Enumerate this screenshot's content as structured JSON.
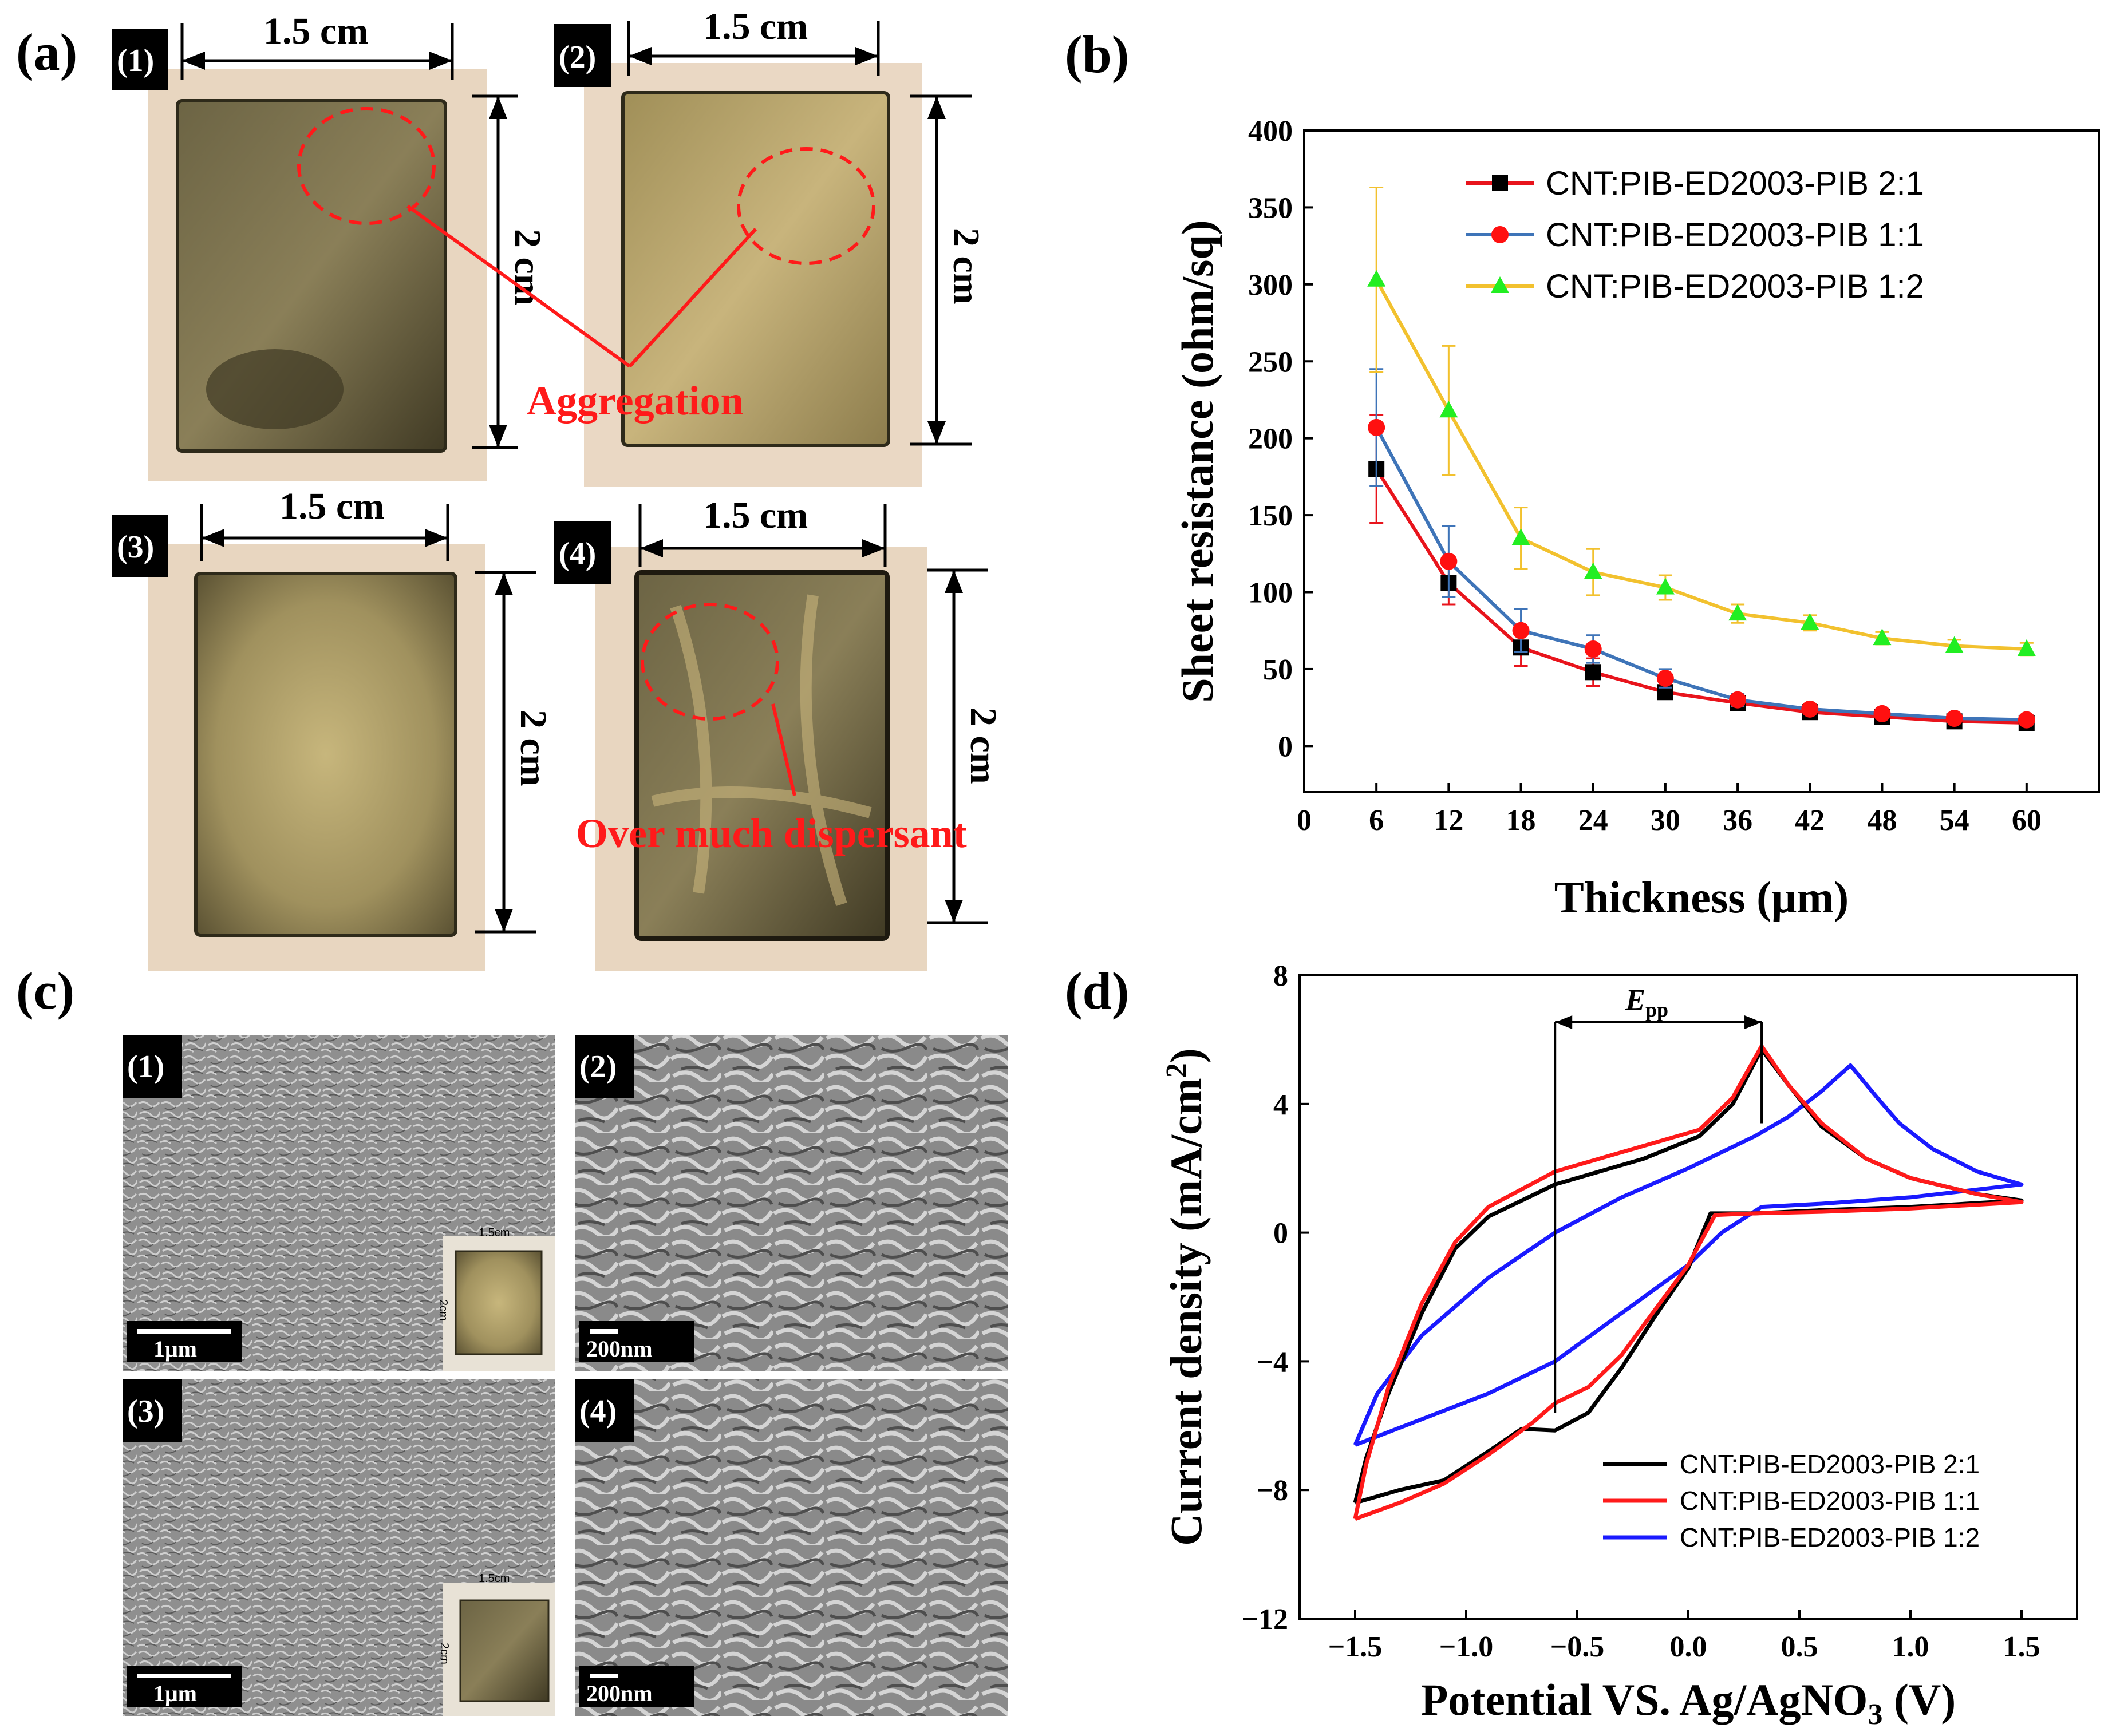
{
  "panels": {
    "a": {
      "label": "(a)",
      "photos": [
        {
          "num": "(1)",
          "width": "1.5 cm",
          "height": "2 cm"
        },
        {
          "num": "(2)",
          "width": "1.5 cm",
          "height": "2 cm"
        },
        {
          "num": "(3)",
          "width": "1.5 cm",
          "height": "2 cm"
        },
        {
          "num": "(4)",
          "width": "1.5 cm",
          "height": "2 cm"
        }
      ],
      "annotations": {
        "aggregation": "Aggregation",
        "dispersant": "Over much dispersant"
      }
    },
    "b": {
      "label": "(b)"
    },
    "c": {
      "label": "(c)",
      "images": [
        {
          "num": "(1)",
          "scale": "1μm",
          "inset_w": "1.5cm",
          "inset_h": "2cm"
        },
        {
          "num": "(2)",
          "scale": "200nm"
        },
        {
          "num": "(3)",
          "scale": "1μm",
          "inset_w": "1.5cm",
          "inset_h": "2cm"
        },
        {
          "num": "(4)",
          "scale": "200nm"
        }
      ]
    },
    "d": {
      "label": "(d)"
    }
  },
  "colors": {
    "red": "#e8141c",
    "blue": "#3e74b8",
    "yellow": "#f2c12e",
    "green": "#22ee22",
    "cv_blue": "#1a1aff",
    "annot": "#ff1a1a"
  },
  "chart_data": [
    {
      "type": "line",
      "panel": "b",
      "xlabel": "Thickness (μm)",
      "ylabel": "Sheet resistance (ohm/sq)",
      "xlim": [
        0,
        66
      ],
      "ylim": [
        -30,
        400
      ],
      "xticks": [
        0,
        6,
        12,
        18,
        24,
        30,
        36,
        42,
        48,
        54,
        60
      ],
      "yticks": [
        0,
        50,
        100,
        150,
        200,
        250,
        300,
        350,
        400
      ],
      "x": [
        6,
        12,
        18,
        24,
        30,
        36,
        42,
        48,
        54,
        60
      ],
      "series": [
        {
          "name": "CNT:PIB-ED2003-PIB 2:1",
          "values": [
            180,
            106,
            64,
            48,
            35,
            28,
            22,
            19,
            16,
            15
          ],
          "errors": [
            35,
            14,
            12,
            9,
            4,
            3,
            3,
            2,
            2,
            2
          ],
          "line": "red",
          "marker": "square"
        },
        {
          "name": "CNT:PIB-ED2003-PIB 1:1",
          "values": [
            207,
            120,
            75,
            63,
            44,
            30,
            24,
            21,
            18,
            17
          ],
          "errors": [
            38,
            23,
            14,
            9,
            6,
            4,
            3,
            3,
            3,
            3
          ],
          "line": "blue",
          "marker": "circle"
        },
        {
          "name": "CNT:PIB-ED2003-PIB 1:2",
          "values": [
            303,
            218,
            135,
            113,
            103,
            86,
            80,
            70,
            65,
            63
          ],
          "errors": [
            60,
            42,
            20,
            15,
            8,
            6,
            5,
            4,
            4,
            4
          ],
          "line": "yellow",
          "marker": "triangle"
        }
      ],
      "legend": "top-right"
    },
    {
      "type": "line",
      "panel": "d",
      "xlabel": "Potential VS. Ag/AgNO",
      "xlabel_sub": "3",
      "xlabel_tail": " (V)",
      "ylabel": "Current density (mA/cm",
      "ylabel_sup": "2",
      "ylabel_tail": ")",
      "xlim": [
        -1.75,
        1.75
      ],
      "ylim": [
        -12,
        8
      ],
      "xticks": [
        "-1.5",
        "-1.0",
        "-0.5",
        "0.0",
        "0.5",
        "1.0",
        "1.5"
      ],
      "xtick_values": [
        -1.5,
        -1.0,
        -0.5,
        0.0,
        0.5,
        1.0,
        1.5
      ],
      "yticks": [
        "-12",
        "-8",
        "-4",
        "0",
        "4",
        "8"
      ],
      "ytick_values": [
        -12,
        -8,
        -4,
        0,
        4,
        8
      ],
      "epp_label": "E",
      "epp_sub": "pp",
      "epp_range": [
        -0.6,
        0.33
      ],
      "series": [
        {
          "name": "CNT:PIB-ED2003-PIB 2:1",
          "color": "black",
          "points": [
            [
              -1.5,
              -8.4
            ],
            [
              -1.3,
              -8.0
            ],
            [
              -1.1,
              -7.7
            ],
            [
              -0.9,
              -6.8
            ],
            [
              -0.75,
              -6.1
            ],
            [
              -0.6,
              -6.15
            ],
            [
              -0.45,
              -5.6
            ],
            [
              -0.3,
              -4.2
            ],
            [
              -0.15,
              -2.6
            ],
            [
              0.0,
              -1.1
            ],
            [
              0.1,
              0.6
            ],
            [
              0.3,
              0.6
            ],
            [
              0.6,
              0.7
            ],
            [
              1.0,
              0.8
            ],
            [
              1.5,
              1.0
            ],
            [
              1.3,
              1.2
            ],
            [
              1.0,
              1.7
            ],
            [
              0.8,
              2.3
            ],
            [
              0.6,
              3.3
            ],
            [
              0.45,
              4.6
            ],
            [
              0.33,
              5.7
            ],
            [
              0.2,
              4.0
            ],
            [
              0.05,
              3.0
            ],
            [
              -0.2,
              2.3
            ],
            [
              -0.6,
              1.5
            ],
            [
              -0.9,
              0.5
            ],
            [
              -1.05,
              -0.5
            ],
            [
              -1.2,
              -2.5
            ],
            [
              -1.35,
              -5.0
            ],
            [
              -1.45,
              -7.0
            ],
            [
              -1.5,
              -8.4
            ]
          ]
        },
        {
          "name": "CNT:PIB-ED2003-PIB 1:1",
          "color": "red",
          "points": [
            [
              -1.5,
              -8.9
            ],
            [
              -1.3,
              -8.4
            ],
            [
              -1.1,
              -7.8
            ],
            [
              -0.9,
              -6.9
            ],
            [
              -0.7,
              -5.9
            ],
            [
              -0.6,
              -5.3
            ],
            [
              -0.45,
              -4.8
            ],
            [
              -0.3,
              -3.8
            ],
            [
              -0.15,
              -2.4
            ],
            [
              0.0,
              -1.0
            ],
            [
              0.12,
              0.55
            ],
            [
              0.3,
              0.6
            ],
            [
              0.6,
              0.65
            ],
            [
              1.0,
              0.75
            ],
            [
              1.5,
              0.95
            ],
            [
              1.3,
              1.2
            ],
            [
              1.0,
              1.7
            ],
            [
              0.8,
              2.3
            ],
            [
              0.6,
              3.4
            ],
            [
              0.45,
              4.6
            ],
            [
              0.33,
              5.8
            ],
            [
              0.2,
              4.2
            ],
            [
              0.05,
              3.2
            ],
            [
              -0.2,
              2.7
            ],
            [
              -0.6,
              1.9
            ],
            [
              -0.9,
              0.8
            ],
            [
              -1.05,
              -0.3
            ],
            [
              -1.2,
              -2.2
            ],
            [
              -1.35,
              -4.8
            ],
            [
              -1.45,
              -7.2
            ],
            [
              -1.5,
              -8.9
            ]
          ]
        },
        {
          "name": "CNT:PIB-ED2003-PIB 1:2",
          "color": "blue",
          "points": [
            [
              -1.5,
              -6.6
            ],
            [
              -1.2,
              -5.8
            ],
            [
              -0.9,
              -5.0
            ],
            [
              -0.6,
              -4.0
            ],
            [
              -0.4,
              -3.0
            ],
            [
              -0.2,
              -2.0
            ],
            [
              0.0,
              -1.0
            ],
            [
              0.15,
              0.0
            ],
            [
              0.33,
              0.8
            ],
            [
              0.6,
              0.9
            ],
            [
              1.0,
              1.1
            ],
            [
              1.5,
              1.5
            ],
            [
              1.3,
              1.9
            ],
            [
              1.1,
              2.6
            ],
            [
              0.95,
              3.4
            ],
            [
              0.85,
              4.2
            ],
            [
              0.73,
              5.2
            ],
            [
              0.6,
              4.4
            ],
            [
              0.45,
              3.6
            ],
            [
              0.3,
              3.0
            ],
            [
              0.0,
              2.0
            ],
            [
              -0.3,
              1.1
            ],
            [
              -0.6,
              0.0
            ],
            [
              -0.9,
              -1.4
            ],
            [
              -1.2,
              -3.2
            ],
            [
              -1.4,
              -5.0
            ],
            [
              -1.5,
              -6.6
            ]
          ]
        }
      ],
      "legend": "bottom-right"
    }
  ]
}
